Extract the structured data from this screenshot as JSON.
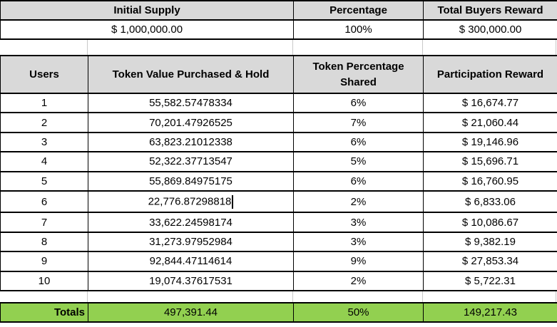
{
  "summary_table": {
    "columns": [
      {
        "header": "Initial Supply",
        "value": "$ 1,000,000.00"
      },
      {
        "header": "Percentage",
        "value": "100%"
      },
      {
        "header": "Total Buyers Reward",
        "value": "$ 300,000.00"
      }
    ]
  },
  "main_table": {
    "headers": {
      "users": "Users",
      "value": "Token Value Purchased & Hold",
      "pct": "Token Percentage Shared",
      "reward": "Participation Reward"
    },
    "rows": [
      {
        "user": "1",
        "value": "55,582.57478334",
        "pct": "6%",
        "reward": "$ 16,674.77"
      },
      {
        "user": "2",
        "value": "70,201.47926525",
        "pct": "7%",
        "reward": "$ 21,060.44"
      },
      {
        "user": "3",
        "value": "63,823.21012338",
        "pct": "6%",
        "reward": "$ 19,146.96"
      },
      {
        "user": "4",
        "value": "52,322.37713547",
        "pct": "5%",
        "reward": "$ 15,696.71"
      },
      {
        "user": "5",
        "value": "55,869.84975175",
        "pct": "6%",
        "reward": "$ 16,760.95"
      },
      {
        "user": "6",
        "value": "22,776.87298818",
        "pct": "2%",
        "reward": "$ 6,833.06"
      },
      {
        "user": "7",
        "value": "33,622.24598174",
        "pct": "3%",
        "reward": "$ 10,086.67"
      },
      {
        "user": "8",
        "value": "31,273.97952984",
        "pct": "3%",
        "reward": "$ 9,382.19"
      },
      {
        "user": "9",
        "value": "92,844.47114614",
        "pct": "9%",
        "reward": "$ 27,853.34"
      },
      {
        "user": "10",
        "value": "19,074.37617531",
        "pct": "2%",
        "reward": "$ 5,722.31"
      }
    ],
    "totals": {
      "label": "Totals",
      "value": "497,391.44",
      "pct": "50%",
      "reward": "149,217.43"
    }
  },
  "colors": {
    "header_bg": "#D9D9D9",
    "totals_bg": "#92D050",
    "border": "#000000",
    "gridline": "#C9C9C9"
  }
}
